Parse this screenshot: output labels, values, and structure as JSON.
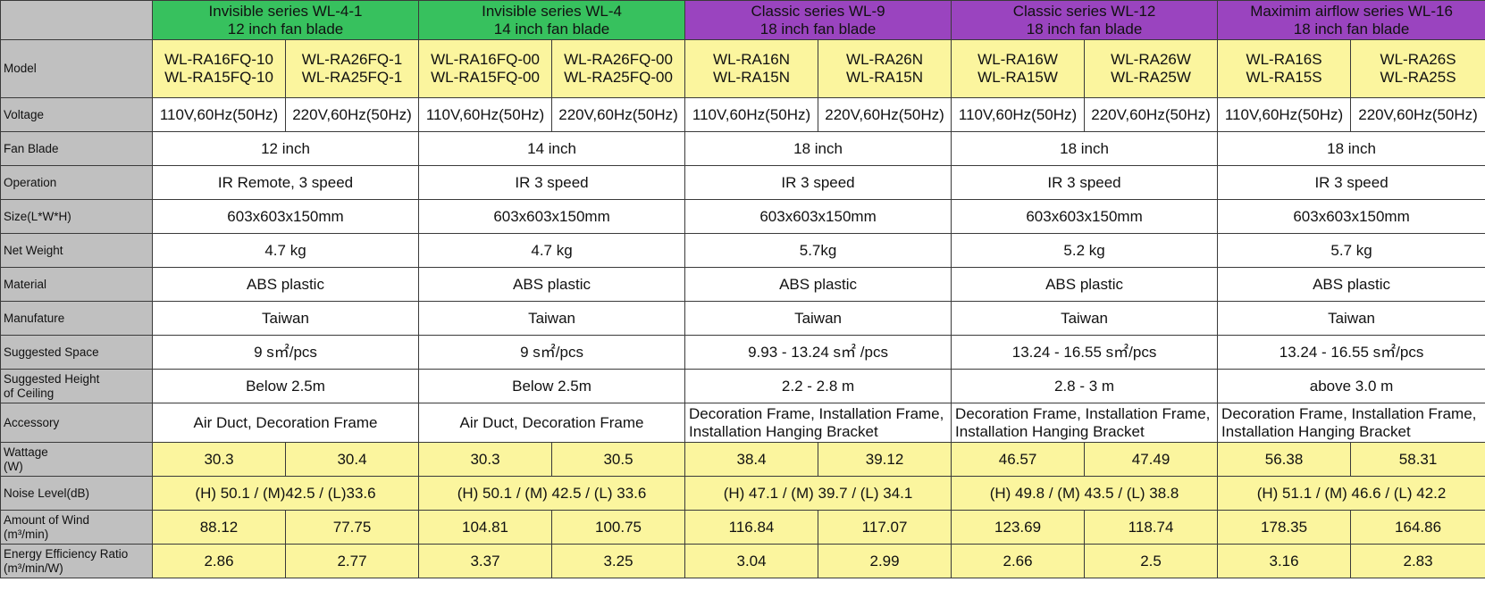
{
  "row_labels": {
    "model": "Model",
    "voltage": "Voltage",
    "fan_blade": "Fan Blade",
    "operation": "Operation",
    "size": "Size(L*W*H)",
    "net_weight": "Net Weight",
    "material": "Material",
    "manufacture": "Manufature",
    "suggested_space": "Suggested Space",
    "suggested_height_1": "Suggested Height",
    "suggested_height_2": "of Ceiling",
    "accessory": "Accessory",
    "wattage_1": "Wattage",
    "wattage_2": "(W)",
    "noise": "Noise Level(dB)",
    "wind_1": "Amount of Wind",
    "wind_2": "(m³/min)",
    "eer_1": "Energy Efficiency Ratio",
    "eer_2": "(m³/min/W)"
  },
  "series": [
    {
      "title_1": "Invisible series  WL-4-1",
      "title_2": "12 inch fan blade",
      "header_color": "#37c15e",
      "models": [
        [
          "WL-RA16FQ-10",
          "WL-RA15FQ-10"
        ],
        [
          "WL-RA26FQ-1",
          "WL-RA25FQ-1"
        ]
      ],
      "voltage": [
        "110V,60Hz(50Hz)",
        "220V,60Hz(50Hz)"
      ],
      "fan_blade": "12 inch",
      "operation": "IR Remote, 3 speed",
      "size": "603x603x150mm",
      "net_weight": "4.7 kg",
      "material": "ABS plastic",
      "manufacture": "Taiwan",
      "suggested_space": "9 s㎡/pcs",
      "suggested_height": "Below 2.5m",
      "accessory_1": "Air Duct, Decoration Frame",
      "accessory_2": "",
      "wattage": [
        "30.3",
        "30.4"
      ],
      "noise": "(H) 50.1 / (M)42.5 / (L)33.6",
      "wind": [
        "88.12",
        "77.75"
      ],
      "eer": [
        "2.86",
        "2.77"
      ]
    },
    {
      "title_1": "Invisible series  WL-4",
      "title_2": "14 inch fan blade",
      "header_color": "#37c15e",
      "models": [
        [
          "WL-RA16FQ-00",
          "WL-RA15FQ-00"
        ],
        [
          "WL-RA26FQ-00",
          "WL-RA25FQ-00"
        ]
      ],
      "voltage": [
        "110V,60Hz(50Hz)",
        "220V,60Hz(50Hz)"
      ],
      "fan_blade": "14 inch",
      "operation": "IR 3 speed",
      "size": "603x603x150mm",
      "net_weight": "4.7 kg",
      "material": "ABS plastic",
      "manufacture": "Taiwan",
      "suggested_space": "9 s㎡/pcs",
      "suggested_height": "Below 2.5m",
      "accessory_1": "Air Duct, Decoration Frame",
      "accessory_2": "",
      "wattage": [
        "30.3",
        "30.5"
      ],
      "noise": "(H) 50.1 / (M) 42.5 / (L) 33.6",
      "wind": [
        "104.81",
        "100.75"
      ],
      "eer": [
        "3.37",
        "3.25"
      ]
    },
    {
      "title_1": "Classic series WL-9",
      "title_2": "18 inch fan blade",
      "header_color": "#9a44bf",
      "models": [
        [
          "WL-RA16N",
          "WL-RA15N"
        ],
        [
          "WL-RA26N",
          "WL-RA15N"
        ]
      ],
      "voltage": [
        "110V,60Hz(50Hz)",
        "220V,60Hz(50Hz)"
      ],
      "fan_blade": "18 inch",
      "operation": "IR 3 speed",
      "size": "603x603x150mm",
      "net_weight": "5.7kg",
      "material": "ABS plastic",
      "manufacture": "Taiwan",
      "suggested_space": "9.93 - 13.24 s㎡ /pcs",
      "suggested_height": "2.2 - 2.8 m",
      "accessory_1": "Decoration Frame, Installation Frame,",
      "accessory_2": "Installation Hanging Bracket",
      "wattage": [
        "38.4",
        "39.12"
      ],
      "noise": "(H) 47.1 / (M) 39.7 / (L) 34.1",
      "wind": [
        "116.84",
        "117.07"
      ],
      "eer": [
        "3.04",
        "2.99"
      ]
    },
    {
      "title_1": "Classic series WL-12",
      "title_2": "18 inch fan blade",
      "header_color": "#9a44bf",
      "models": [
        [
          "WL-RA16W",
          "WL-RA15W"
        ],
        [
          "WL-RA26W",
          "WL-RA25W"
        ]
      ],
      "voltage": [
        "110V,60Hz(50Hz)",
        "220V,60Hz(50Hz)"
      ],
      "fan_blade": "18 inch",
      "operation": "IR 3 speed",
      "size": "603x603x150mm",
      "net_weight": "5.2 kg",
      "material": "ABS plastic",
      "manufacture": "Taiwan",
      "suggested_space": "13.24 - 16.55 s㎡/pcs",
      "suggested_height": "2.8 - 3 m",
      "accessory_1": "Decoration Frame, Installation Frame,",
      "accessory_2": "Installation Hanging Bracket",
      "wattage": [
        "46.57",
        "47.49"
      ],
      "noise": "(H) 49.8 / (M) 43.5 / (L) 38.8",
      "wind": [
        "123.69",
        "118.74"
      ],
      "eer": [
        "2.66",
        "2.5"
      ]
    },
    {
      "title_1": "Maximim airflow series WL-16",
      "title_2": "18 inch fan blade",
      "header_color": "#9a44bf",
      "models": [
        [
          "WL-RA16S",
          "WL-RA15S"
        ],
        [
          "WL-RA26S",
          "WL-RA25S"
        ]
      ],
      "voltage": [
        "110V,60Hz(50Hz)",
        "220V,60Hz(50Hz)"
      ],
      "fan_blade": "18 inch",
      "operation": "IR 3 speed",
      "size": "603x603x150mm",
      "net_weight": "5.7 kg",
      "material": "ABS plastic",
      "manufacture": "Taiwan",
      "suggested_space": "13.24 - 16.55 s㎡/pcs",
      "suggested_height": "above 3.0 m",
      "accessory_1": "Decoration Frame, Installation Frame,",
      "accessory_2": "Installation Hanging Bracket",
      "wattage": [
        "56.38",
        "58.31"
      ],
      "noise": "(H) 51.1 / (M) 46.6 / (L) 42.2",
      "wind": [
        "178.35",
        "164.86"
      ],
      "eer": [
        "3.16",
        "2.83"
      ]
    }
  ],
  "colors": {
    "label_bg": "#c0c0c0",
    "yellow_bg": "#fbf59e",
    "green_header": "#37c15e",
    "purple_header": "#9a44bf"
  }
}
